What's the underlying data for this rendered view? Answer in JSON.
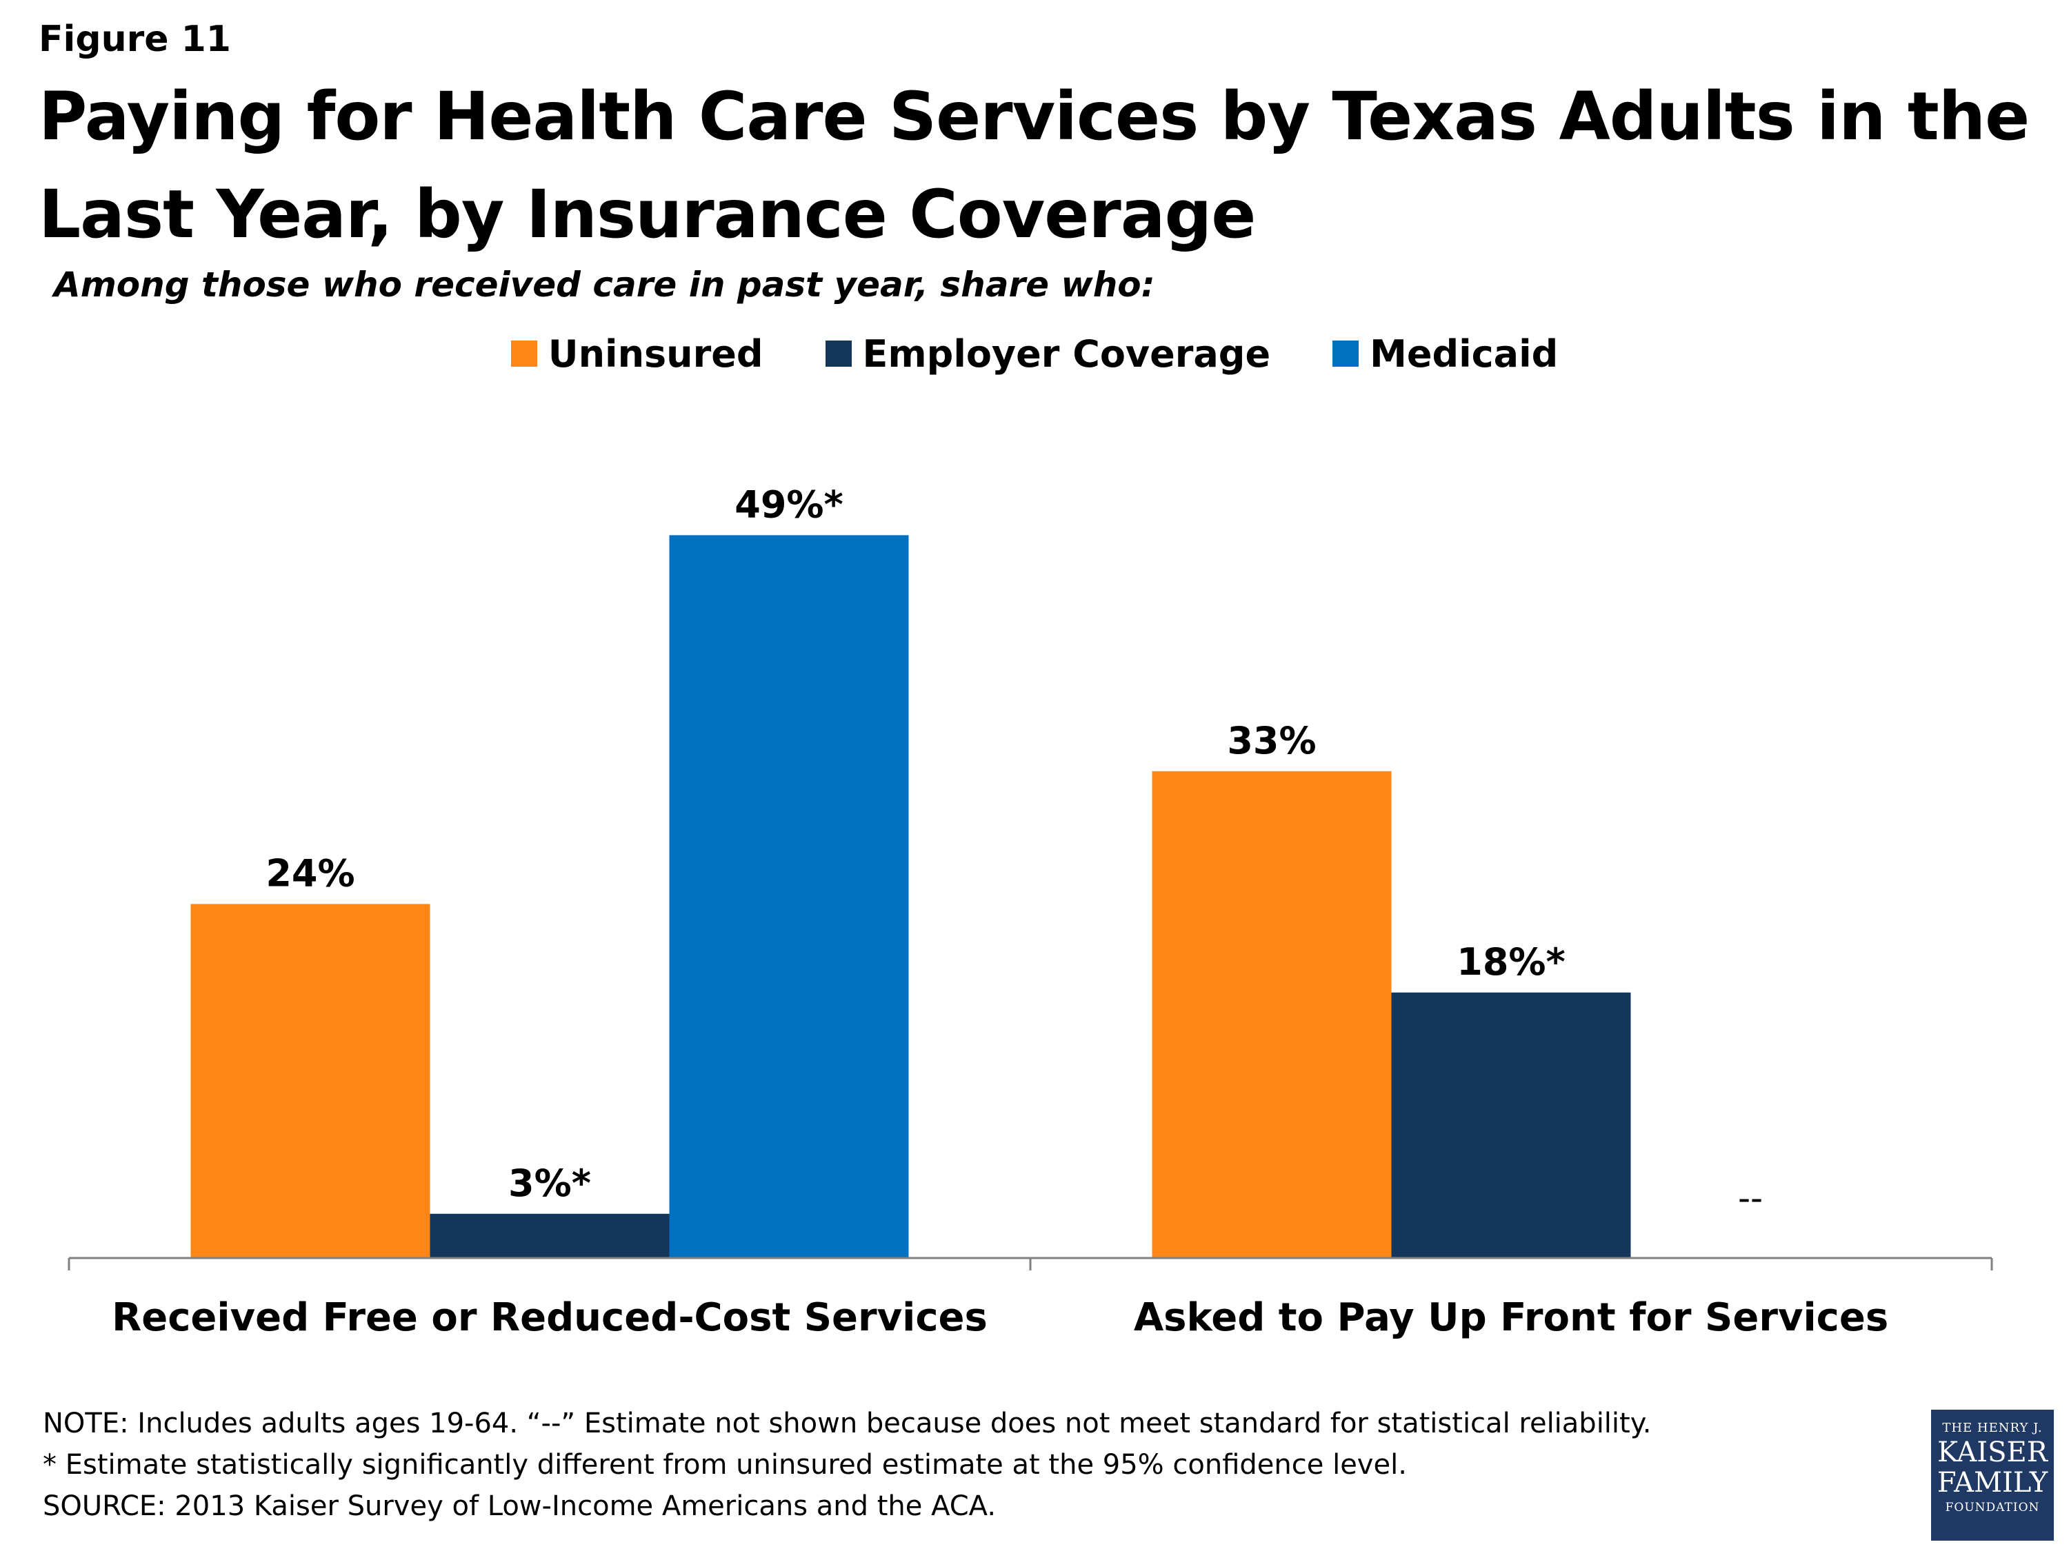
{
  "header": {
    "figure_label": "Figure 11",
    "title": "Paying for Health Care Services by Texas Adults in the Last Year, by Insurance Coverage",
    "subtitle": "Among those who received care in past year, share who:"
  },
  "colors": {
    "uninsured": "#FF8515",
    "employer": "#14365A",
    "medicaid": "#0070C0",
    "axis": "#808080",
    "logo_bg": "#1F3864"
  },
  "chart_data": {
    "type": "bar",
    "title": "Paying for Health Care Services by Texas Adults in the Last Year, by Insurance Coverage",
    "subtitle": "Among those who received care in past year, share who:",
    "categories": [
      "Received Free or Reduced-Cost Services",
      "Asked to Pay Up Front for Services"
    ],
    "series": [
      {
        "name": "Uninsured",
        "color": "#FF8515",
        "values": [
          24,
          33
        ],
        "labels": [
          "24%",
          "33%"
        ]
      },
      {
        "name": "Employer Coverage",
        "color": "#14365A",
        "values": [
          3,
          18
        ],
        "labels": [
          "3%*",
          "18%*"
        ]
      },
      {
        "name": "Medicaid",
        "color": "#0070C0",
        "values": [
          49,
          null
        ],
        "labels": [
          "49%*",
          "--"
        ]
      }
    ],
    "xlabel": "",
    "ylabel": "",
    "ylim": [
      0,
      60
    ],
    "grid": false,
    "legend_position": "top"
  },
  "notes": {
    "note": "NOTE: Includes adults ages 19-64. “--” Estimate not shown because does not meet standard for statistical reliability.",
    "significance": "* Estimate statistically significantly different from uninsured estimate  at the 95% confidence level.",
    "source": "SOURCE: 2013 Kaiser Survey of Low-Income Americans and the ACA."
  },
  "logo": {
    "line1": "THE HENRY J.",
    "line2": "KAISER",
    "line3": "FAMILY",
    "line4": "FOUNDATION"
  }
}
